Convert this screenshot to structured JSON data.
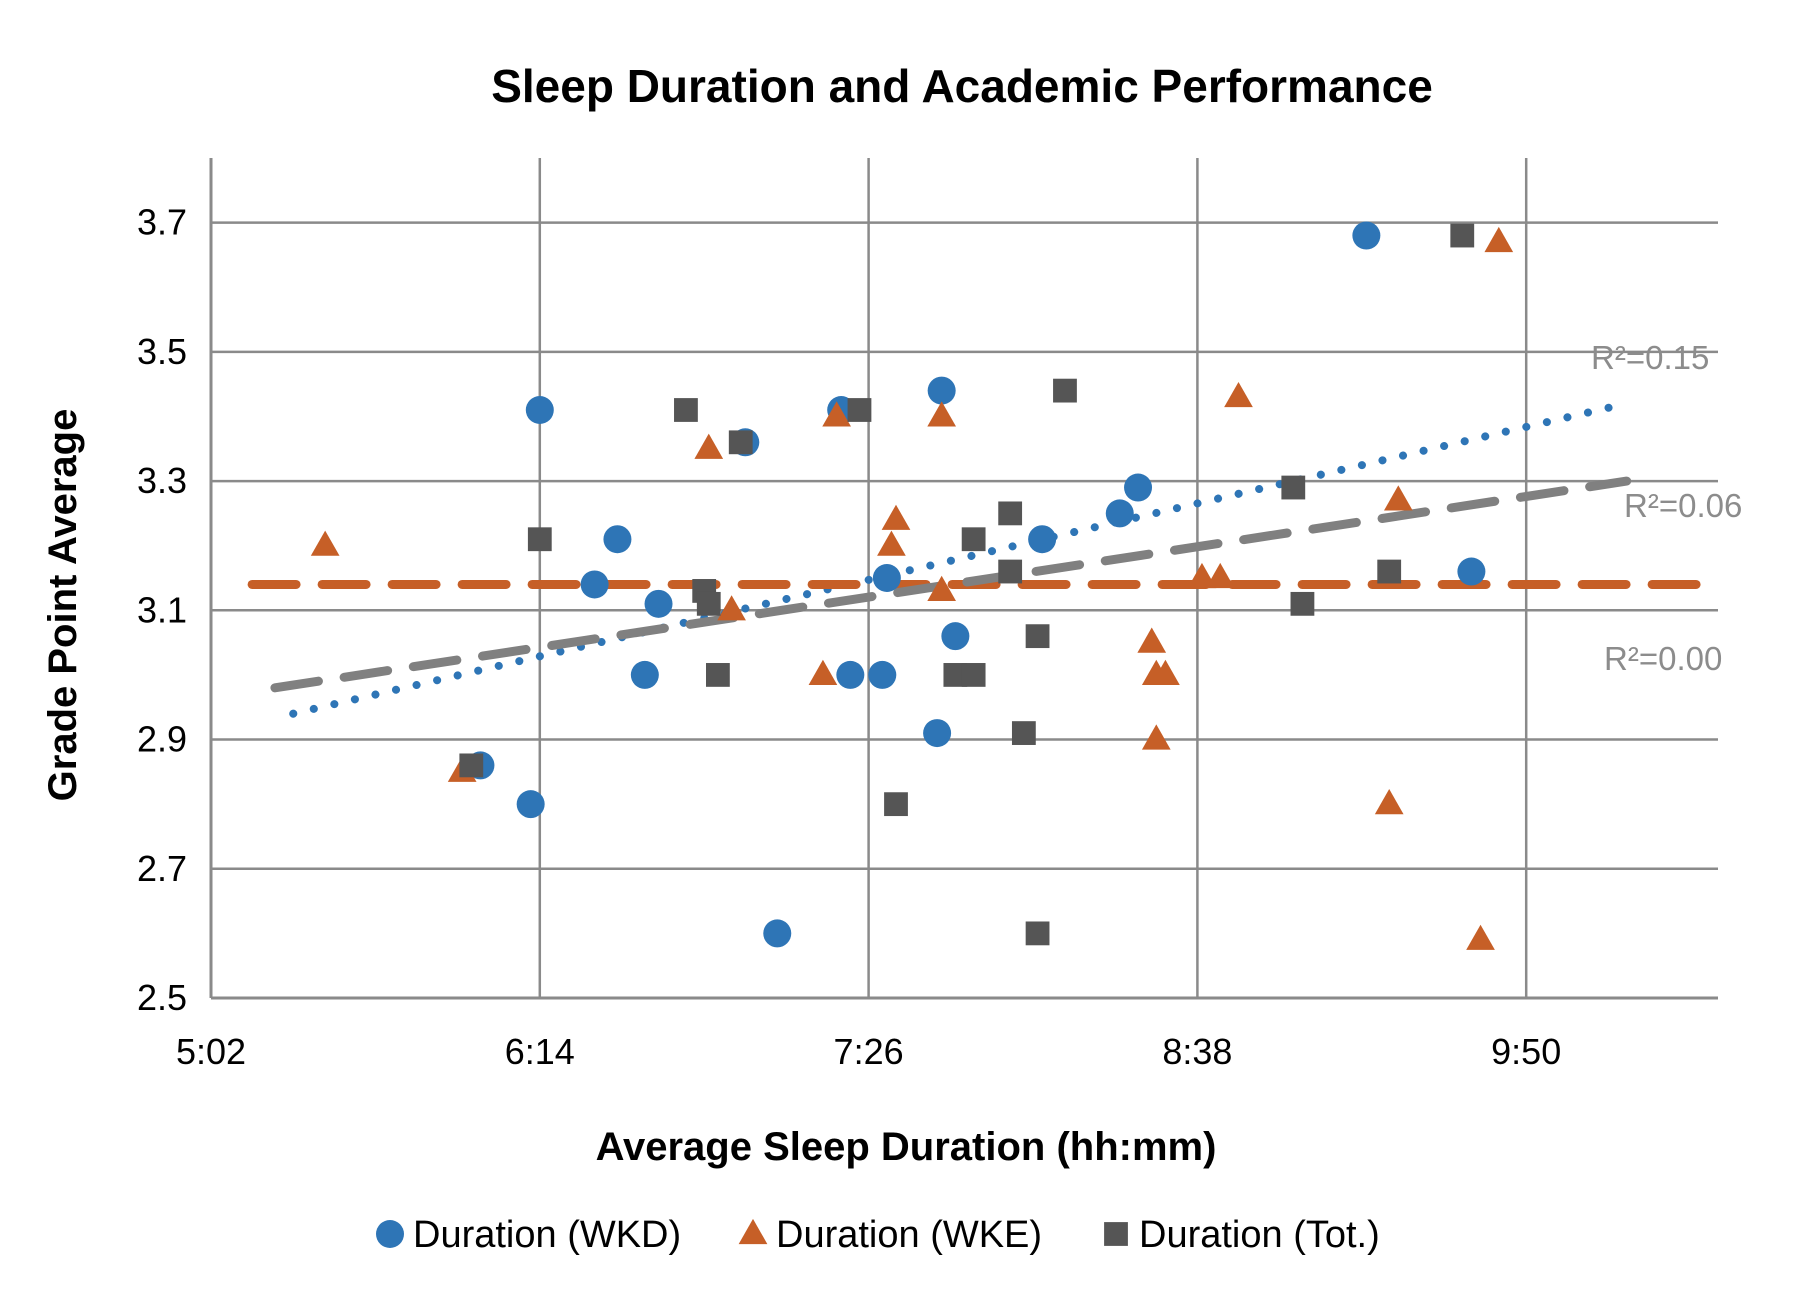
{
  "chart_data": {
    "type": "scatter",
    "title": "Sleep Duration and Academic Performance",
    "xlabel": "Average Sleep Duration (hh:mm)",
    "ylabel": "Grade Point Average",
    "x_unit": "minutes",
    "xlim": [
      302,
      632
    ],
    "ylim": [
      2.5,
      3.8
    ],
    "x_ticks": [
      {
        "value": 302,
        "label": "5:02"
      },
      {
        "value": 374,
        "label": "6:14"
      },
      {
        "value": 446,
        "label": "7:26"
      },
      {
        "value": 518,
        "label": "8:38"
      },
      {
        "value": 590,
        "label": "9:50"
      }
    ],
    "y_ticks": [
      {
        "value": 2.5,
        "label": "2.5"
      },
      {
        "value": 2.7,
        "label": "2.7"
      },
      {
        "value": 2.9,
        "label": "2.9"
      },
      {
        "value": 3.1,
        "label": "3.1"
      },
      {
        "value": 3.3,
        "label": "3.3"
      },
      {
        "value": 3.5,
        "label": "3.5"
      },
      {
        "value": 3.7,
        "label": "3.7"
      }
    ],
    "grid": true,
    "legend_position": "bottom",
    "series": [
      {
        "name": "Duration (WKD)",
        "marker": "circle",
        "color": "#2e75b6",
        "points": [
          [
            374,
            3.41
          ],
          [
            391,
            3.21
          ],
          [
            386,
            3.14
          ],
          [
            400,
            3.11
          ],
          [
            397,
            3.0
          ],
          [
            419,
            3.36
          ],
          [
            426,
            2.6
          ],
          [
            440,
            3.41
          ],
          [
            442,
            3.0
          ],
          [
            449,
            3.0
          ],
          [
            450,
            3.15
          ],
          [
            462,
            3.44
          ],
          [
            461,
            2.91
          ],
          [
            465,
            3.06
          ],
          [
            484,
            3.21
          ],
          [
            501,
            3.25
          ],
          [
            505,
            3.29
          ],
          [
            361,
            2.86
          ],
          [
            372,
            2.8
          ],
          [
            555,
            3.68
          ],
          [
            578,
            3.16
          ]
        ],
        "trendline": {
          "style": "dotted",
          "from": [
            320,
            2.94
          ],
          "to": [
            612,
            3.42
          ],
          "r2_label": "R²=0.15"
        }
      },
      {
        "name": "Duration (WKE)",
        "marker": "triangle",
        "color": "#c65f27",
        "points": [
          [
            327,
            3.2
          ],
          [
            357,
            2.85
          ],
          [
            411,
            3.35
          ],
          [
            416,
            3.1
          ],
          [
            436,
            3.0
          ],
          [
            439,
            3.4
          ],
          [
            451,
            3.2
          ],
          [
            452,
            3.24
          ],
          [
            462,
            3.4
          ],
          [
            462,
            3.13
          ],
          [
            508,
            3.05
          ],
          [
            509,
            3.0
          ],
          [
            511,
            3.0
          ],
          [
            509,
            2.9
          ],
          [
            519,
            3.15
          ],
          [
            523,
            3.15
          ],
          [
            527,
            3.43
          ],
          [
            584,
            3.67
          ],
          [
            562,
            3.27
          ],
          [
            560,
            2.8
          ],
          [
            580,
            2.59
          ]
        ],
        "trendline": {
          "style": "dashed",
          "from": [
            311,
            3.14
          ],
          "to": [
            631,
            3.14
          ],
          "r2_label": "R²=0.00"
        }
      },
      {
        "name": "Duration (Tot.)",
        "marker": "square",
        "color": "#555555",
        "points": [
          [
            359,
            2.86
          ],
          [
            374,
            3.21
          ],
          [
            406,
            3.41
          ],
          [
            410,
            3.13
          ],
          [
            411,
            3.11
          ],
          [
            413,
            3.0
          ],
          [
            418,
            3.36
          ],
          [
            444,
            3.41
          ],
          [
            452,
            2.8
          ],
          [
            465,
            3.0
          ],
          [
            469,
            3.0
          ],
          [
            469,
            3.21
          ],
          [
            477,
            3.25
          ],
          [
            477,
            3.16
          ],
          [
            480,
            2.91
          ],
          [
            483,
            2.6
          ],
          [
            483,
            3.06
          ],
          [
            489,
            3.44
          ],
          [
            539,
            3.29
          ],
          [
            541,
            3.11
          ],
          [
            560,
            3.16
          ],
          [
            576,
            3.68
          ]
        ],
        "trendline": {
          "style": "dashed",
          "from": [
            316,
            2.98
          ],
          "to": [
            612,
            3.3
          ],
          "r2_label": "R²=0.06"
        }
      }
    ]
  }
}
